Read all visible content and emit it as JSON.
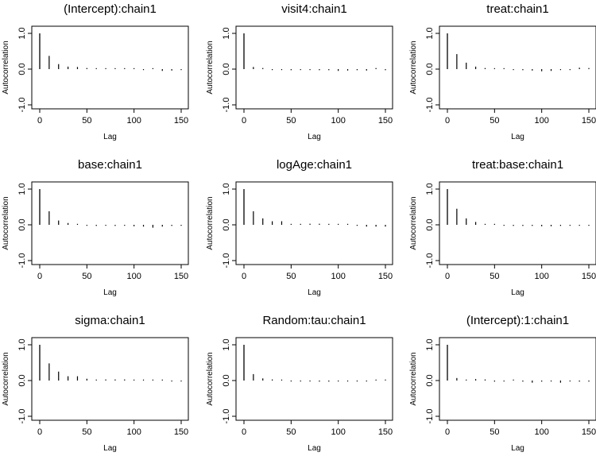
{
  "chart_data": [
    {
      "type": "bar",
      "title": "(Intercept):chain1",
      "xlabel": "Lag",
      "ylabel": "Autocorrelation",
      "x": [
        0,
        10,
        20,
        30,
        40,
        50,
        60,
        70,
        80,
        90,
        100,
        110,
        120,
        130,
        140,
        150
      ],
      "values": [
        1.0,
        0.37,
        0.14,
        0.07,
        0.06,
        0.03,
        0.01,
        0.02,
        0.02,
        0.02,
        0.01,
        -0.01,
        0.02,
        -0.05,
        -0.04,
        -0.02
      ],
      "xticks": [
        0,
        50,
        100,
        150
      ],
      "yticks": [
        -1.0,
        0.0,
        1.0
      ],
      "ylim": [
        -1,
        1
      ],
      "xlim": [
        0,
        150
      ]
    },
    {
      "type": "bar",
      "title": "visit4:chain1",
      "xlabel": "Lag",
      "ylabel": "Autocorrelation",
      "x": [
        0,
        10,
        20,
        30,
        40,
        50,
        60,
        70,
        80,
        90,
        100,
        110,
        120,
        130,
        140,
        150
      ],
      "values": [
        1.0,
        0.06,
        0.03,
        -0.02,
        -0.02,
        -0.03,
        -0.02,
        -0.02,
        -0.03,
        -0.03,
        -0.05,
        -0.04,
        -0.03,
        -0.04,
        0.03,
        -0.03
      ],
      "xticks": [
        0,
        50,
        100,
        150
      ],
      "yticks": [
        -1.0,
        0.0,
        1.0
      ],
      "ylim": [
        -1,
        1
      ],
      "xlim": [
        0,
        150
      ]
    },
    {
      "type": "bar",
      "title": "treat:chain1",
      "xlabel": "Lag",
      "ylabel": "Autocorrelation",
      "x": [
        0,
        10,
        20,
        30,
        40,
        50,
        60,
        70,
        80,
        90,
        100,
        110,
        120,
        130,
        140,
        150
      ],
      "values": [
        1.0,
        0.42,
        0.18,
        0.07,
        0.03,
        0.01,
        0.0,
        -0.02,
        -0.03,
        -0.04,
        -0.06,
        -0.05,
        -0.02,
        -0.01,
        0.04,
        0.03
      ],
      "xticks": [
        0,
        50,
        100,
        150
      ],
      "yticks": [
        -1.0,
        0.0,
        1.0
      ],
      "ylim": [
        -1,
        1
      ],
      "xlim": [
        0,
        150
      ]
    },
    {
      "type": "bar",
      "title": "base:chain1",
      "xlabel": "Lag",
      "ylabel": "Autocorrelation",
      "x": [
        0,
        10,
        20,
        30,
        40,
        50,
        60,
        70,
        80,
        90,
        100,
        110,
        120,
        130,
        140,
        150
      ],
      "values": [
        1.0,
        0.38,
        0.12,
        0.05,
        0.02,
        -0.02,
        -0.03,
        -0.02,
        -0.03,
        -0.02,
        -0.04,
        -0.05,
        -0.08,
        -0.05,
        -0.03,
        -0.02
      ],
      "xticks": [
        0,
        50,
        100,
        150
      ],
      "yticks": [
        -1.0,
        0.0,
        1.0
      ],
      "ylim": [
        -1,
        1
      ],
      "xlim": [
        0,
        150
      ]
    },
    {
      "type": "bar",
      "title": "logAge:chain1",
      "xlabel": "Lag",
      "ylabel": "Autocorrelation",
      "x": [
        0,
        10,
        20,
        30,
        40,
        50,
        60,
        70,
        80,
        90,
        100,
        110,
        120,
        130,
        140,
        150
      ],
      "values": [
        1.0,
        0.38,
        0.18,
        0.1,
        0.1,
        0.02,
        0.02,
        0.03,
        0.03,
        0.02,
        0.02,
        0.0,
        -0.02,
        -0.05,
        -0.05,
        -0.05
      ],
      "xticks": [
        0,
        50,
        100,
        150
      ],
      "yticks": [
        -1.0,
        0.0,
        1.0
      ],
      "ylim": [
        -1,
        1
      ],
      "xlim": [
        0,
        150
      ]
    },
    {
      "type": "bar",
      "title": "treat:base:chain1",
      "xlabel": "Lag",
      "ylabel": "Autocorrelation",
      "x": [
        0,
        10,
        20,
        30,
        40,
        50,
        60,
        70,
        80,
        90,
        100,
        110,
        120,
        130,
        140,
        150
      ],
      "values": [
        1.0,
        0.45,
        0.18,
        0.08,
        0.02,
        0.01,
        -0.02,
        -0.03,
        -0.03,
        -0.03,
        -0.04,
        -0.04,
        -0.03,
        -0.02,
        -0.02,
        -0.02
      ],
      "xticks": [
        0,
        50,
        100,
        150
      ],
      "yticks": [
        -1.0,
        0.0,
        1.0
      ],
      "ylim": [
        -1,
        1
      ],
      "xlim": [
        0,
        150
      ]
    },
    {
      "type": "bar",
      "title": "sigma:chain1",
      "xlabel": "Lag",
      "ylabel": "Autocorrelation",
      "x": [
        0,
        10,
        20,
        30,
        40,
        50,
        60,
        70,
        80,
        90,
        100,
        110,
        120,
        130,
        140,
        150
      ],
      "values": [
        1.0,
        0.48,
        0.25,
        0.12,
        0.12,
        0.05,
        0.02,
        0.03,
        0.03,
        0.03,
        0.01,
        0.02,
        0.01,
        0.0,
        -0.01,
        -0.01
      ],
      "xticks": [
        0,
        50,
        100,
        150
      ],
      "yticks": [
        -1.0,
        0.0,
        1.0
      ],
      "ylim": [
        -1,
        1
      ],
      "xlim": [
        0,
        150
      ]
    },
    {
      "type": "bar",
      "title": "Random:tau:chain1",
      "xlabel": "Lag",
      "ylabel": "Autocorrelation",
      "x": [
        0,
        10,
        20,
        30,
        40,
        50,
        60,
        70,
        80,
        90,
        100,
        110,
        120,
        130,
        140,
        150
      ],
      "values": [
        1.0,
        0.18,
        0.06,
        0.03,
        0.02,
        -0.02,
        -0.02,
        -0.02,
        -0.03,
        -0.03,
        -0.02,
        -0.02,
        -0.01,
        -0.01,
        0.0,
        0.0
      ],
      "xticks": [
        0,
        50,
        100,
        150
      ],
      "yticks": [
        -1.0,
        0.0,
        1.0
      ],
      "ylim": [
        -1,
        1
      ],
      "xlim": [
        0,
        150
      ]
    },
    {
      "type": "bar",
      "title": "(Intercept):1:chain1",
      "xlabel": "Lag",
      "ylabel": "Autocorrelation",
      "x": [
        0,
        10,
        20,
        30,
        40,
        50,
        60,
        70,
        80,
        90,
        100,
        110,
        120,
        130,
        140,
        150
      ],
      "values": [
        1.0,
        0.07,
        0.02,
        0.04,
        0.03,
        -0.03,
        -0.02,
        0.02,
        -0.03,
        -0.06,
        -0.03,
        -0.02,
        -0.06,
        -0.02,
        -0.03,
        -0.03
      ],
      "xticks": [
        0,
        50,
        100,
        150
      ],
      "yticks": [
        -1.0,
        0.0,
        1.0
      ],
      "ylim": [
        -1,
        1
      ],
      "xlim": [
        0,
        150
      ]
    }
  ]
}
